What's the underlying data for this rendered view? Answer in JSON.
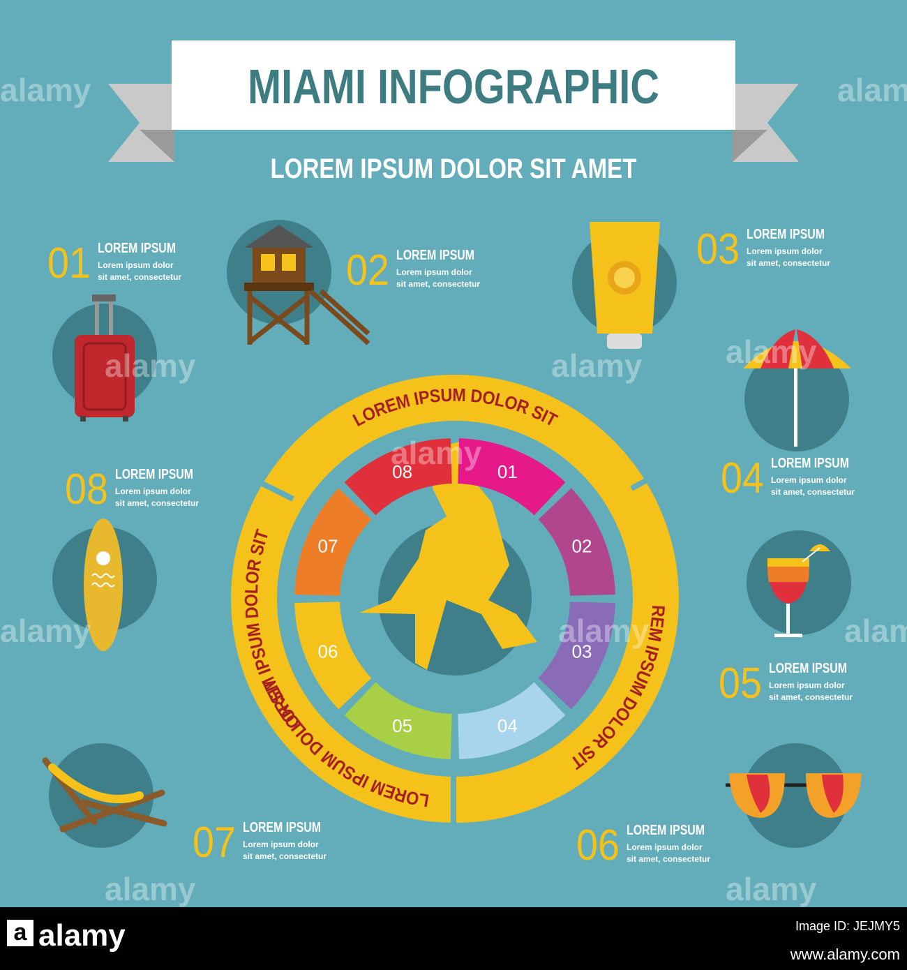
{
  "header": {
    "title": "MIAMI INFOGRAPHIC",
    "subtitle": "LOREM IPSUM DOLOR SIT AMET"
  },
  "ring": {
    "arc_labels": [
      "LOREM IPSUM DOLOR SIT",
      "LOREM IPSUM DOLOR SIT",
      "LOREM IPSUM DOLOR SIT",
      "LOREM IPSUM DOLOR SIT"
    ],
    "segments": [
      "01",
      "02",
      "03",
      "04",
      "05",
      "06",
      "07",
      "08"
    ]
  },
  "items": [
    {
      "number": "01",
      "title": "LOREM IPSUM",
      "text": [
        "Lorem ipsum dolor",
        "sit amet, consectetur"
      ]
    },
    {
      "number": "02",
      "title": "LOREM IPSUM",
      "text": [
        "Lorem ipsum dolor",
        "sit amet, consectetur"
      ]
    },
    {
      "number": "03",
      "title": "LOREM IPSUM",
      "text": [
        "Lorem ipsum dolor",
        "sit amet, consectetur"
      ]
    },
    {
      "number": "04",
      "title": "LOREM IPSUM",
      "text": [
        "Lorem ipsum dolor",
        "sit amet, consectetur"
      ]
    },
    {
      "number": "05",
      "title": "LOREM IPSUM",
      "text": [
        "Lorem ipsum dolor",
        "sit amet, consectetur"
      ]
    },
    {
      "number": "06",
      "title": "LOREM IPSUM",
      "text": [
        "Lorem ipsum dolor",
        "sit amet, consectetur"
      ]
    },
    {
      "number": "07",
      "title": "LOREM IPSUM",
      "text": [
        "Lorem ipsum dolor",
        "sit amet, consectetur"
      ]
    },
    {
      "number": "08",
      "title": "LOREM IPSUM",
      "text": [
        "Lorem ipsum dolor",
        "sit amet, consectetur"
      ]
    }
  ],
  "watermark": "alamy",
  "footer": {
    "logo_mark": "a",
    "logo": "alamy",
    "image_id": "Image ID: JEJMY5",
    "url": "www.alamy.com"
  }
}
